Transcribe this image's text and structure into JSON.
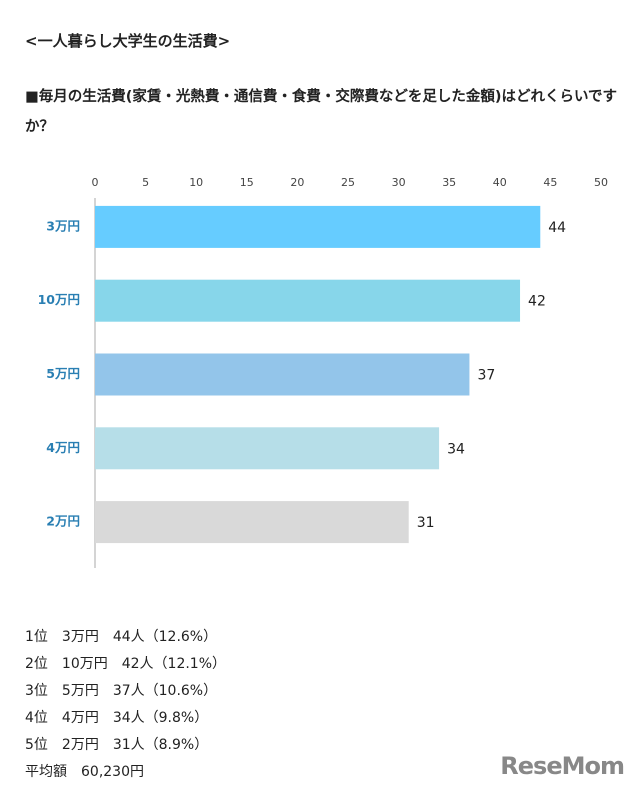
{
  "chart_data": {
    "type": "barh",
    "title": "<一人暮らし大学生の生活費>",
    "subtitle": "■毎月の生活費(家賃・光熱費・通信費・食費・交際費などを足した金額)はどれくらいですか？",
    "categories": [
      "3万円",
      "10万円",
      "5万円",
      "4万円",
      "2万円"
    ],
    "values": [
      44,
      42,
      37,
      34,
      31
    ],
    "colors": [
      "#66ccff",
      "#87d6ea",
      "#93c5ea",
      "#b6dee8",
      "#d9d9d9"
    ],
    "xlim": [
      0,
      50
    ],
    "xticks": [
      0,
      5,
      10,
      15,
      20,
      25,
      30,
      35,
      40,
      45,
      50
    ],
    "grid": false
  },
  "ranking": [
    "1位　3万円　44人（12.6%）",
    "2位　10万円　42人（12.1%）",
    "3位　5万円　37人（10.6%）",
    "4位　4万円　34人（9.8%）",
    "5位　2万円　31人（8.9%）"
  ],
  "average": "平均額　60,230円",
  "logo": "ReseMom"
}
